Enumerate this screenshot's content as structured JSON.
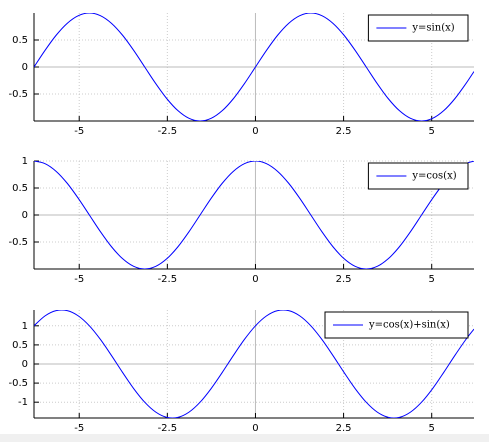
{
  "chart_data": [
    {
      "type": "line",
      "series": [
        {
          "name": "y=sin(x)",
          "color": "#0000ff",
          "values": [
            0,
            0.309,
            0.588,
            0.809,
            0.951,
            1,
            0.951,
            0.809,
            0.588,
            0.309,
            0,
            -0.309,
            -0.588,
            -0.809,
            -0.951,
            -1,
            -0.951,
            -0.809,
            -0.588,
            -0.309,
            0,
            0.309,
            0.588,
            0.809,
            0.951,
            1,
            0.951,
            0.809,
            0.588,
            0.309,
            0,
            -0.309,
            -0.588,
            -0.809,
            -0.951,
            -1,
            -0.951,
            -0.809,
            -0.588,
            -0.309,
            -0.083
          ]
        }
      ],
      "x": [
        -6.283,
        -5.969,
        -5.655,
        -5.341,
        -5.027,
        -4.712,
        -4.398,
        -4.084,
        -3.77,
        -3.456,
        -3.142,
        -2.827,
        -2.513,
        -2.199,
        -1.885,
        -1.571,
        -1.257,
        -0.942,
        -0.628,
        -0.314,
        0,
        0.314,
        0.628,
        0.942,
        1.257,
        1.571,
        1.885,
        2.199,
        2.513,
        2.827,
        3.142,
        3.456,
        3.77,
        4.084,
        4.398,
        4.712,
        5.027,
        5.341,
        5.655,
        5.969,
        6.2
      ],
      "xlim": [
        -6.283,
        6.2
      ],
      "xticks": [
        -5,
        -2.5,
        0,
        2.5,
        5
      ],
      "ylim": [
        -1,
        1
      ],
      "yticks": [
        -0.5,
        0,
        0.5
      ],
      "grid": true,
      "legend": "upper right"
    },
    {
      "type": "line",
      "series": [
        {
          "name": "y=cos(x)",
          "color": "#0000ff",
          "values": [
            1,
            0.951,
            0.809,
            0.588,
            0.309,
            0,
            -0.309,
            -0.588,
            -0.809,
            -0.951,
            -1,
            -0.951,
            -0.809,
            -0.588,
            -0.309,
            0,
            0.309,
            0.588,
            0.809,
            0.951,
            1,
            0.951,
            0.809,
            0.588,
            0.309,
            0,
            -0.309,
            -0.588,
            -0.809,
            -0.951,
            -1,
            -0.951,
            -0.809,
            -0.588,
            -0.309,
            0,
            0.309,
            0.588,
            0.809,
            0.951,
            0.997
          ]
        }
      ],
      "x": [
        -6.283,
        -5.969,
        -5.655,
        -5.341,
        -5.027,
        -4.712,
        -4.398,
        -4.084,
        -3.77,
        -3.456,
        -3.142,
        -2.827,
        -2.513,
        -2.199,
        -1.885,
        -1.571,
        -1.257,
        -0.942,
        -0.628,
        -0.314,
        0,
        0.314,
        0.628,
        0.942,
        1.257,
        1.571,
        1.885,
        2.199,
        2.513,
        2.827,
        3.142,
        3.456,
        3.77,
        4.084,
        4.398,
        4.712,
        5.027,
        5.341,
        5.655,
        5.969,
        6.2
      ],
      "xlim": [
        -6.283,
        6.2
      ],
      "xticks": [
        -5,
        -2.5,
        0,
        2.5,
        5
      ],
      "ylim": [
        -1,
        1
      ],
      "yticks": [
        -0.5,
        0,
        0.5,
        1
      ],
      "grid": true,
      "legend": "upper right"
    },
    {
      "type": "line",
      "series": [
        {
          "name": "y=cos(x)+sin(x)",
          "color": "#0000ff",
          "values": [
            1,
            1.26,
            1.397,
            1.397,
            1.26,
            1,
            0.642,
            0.221,
            -0.221,
            -0.642,
            -1,
            -1.26,
            -1.397,
            -1.397,
            -1.26,
            -1,
            -0.642,
            -0.221,
            0.221,
            0.642,
            1,
            1.26,
            1.397,
            1.397,
            1.26,
            1,
            0.642,
            0.221,
            -0.221,
            -0.642,
            -1,
            -1.26,
            -1.397,
            -1.397,
            -1.26,
            -1,
            -0.642,
            -0.221,
            0.221,
            0.642,
            0.914
          ]
        }
      ],
      "x": [
        -6.283,
        -5.969,
        -5.655,
        -5.341,
        -5.027,
        -4.712,
        -4.398,
        -4.084,
        -3.77,
        -3.456,
        -3.142,
        -2.827,
        -2.513,
        -2.199,
        -1.885,
        -1.571,
        -1.257,
        -0.942,
        -0.628,
        -0.314,
        0,
        0.314,
        0.628,
        0.942,
        1.257,
        1.571,
        1.885,
        2.199,
        2.513,
        2.827,
        3.142,
        3.456,
        3.77,
        4.084,
        4.398,
        4.712,
        5.027,
        5.341,
        5.655,
        5.969,
        6.2
      ],
      "xlim": [
        -6.283,
        6.2
      ],
      "xticks": [
        -5,
        -2.5,
        0,
        2.5,
        5
      ],
      "ylim": [
        -1.414,
        1.414
      ],
      "yticks": [
        -1,
        -0.5,
        0,
        0.5,
        1
      ],
      "grid": true,
      "legend": "upper right"
    }
  ]
}
